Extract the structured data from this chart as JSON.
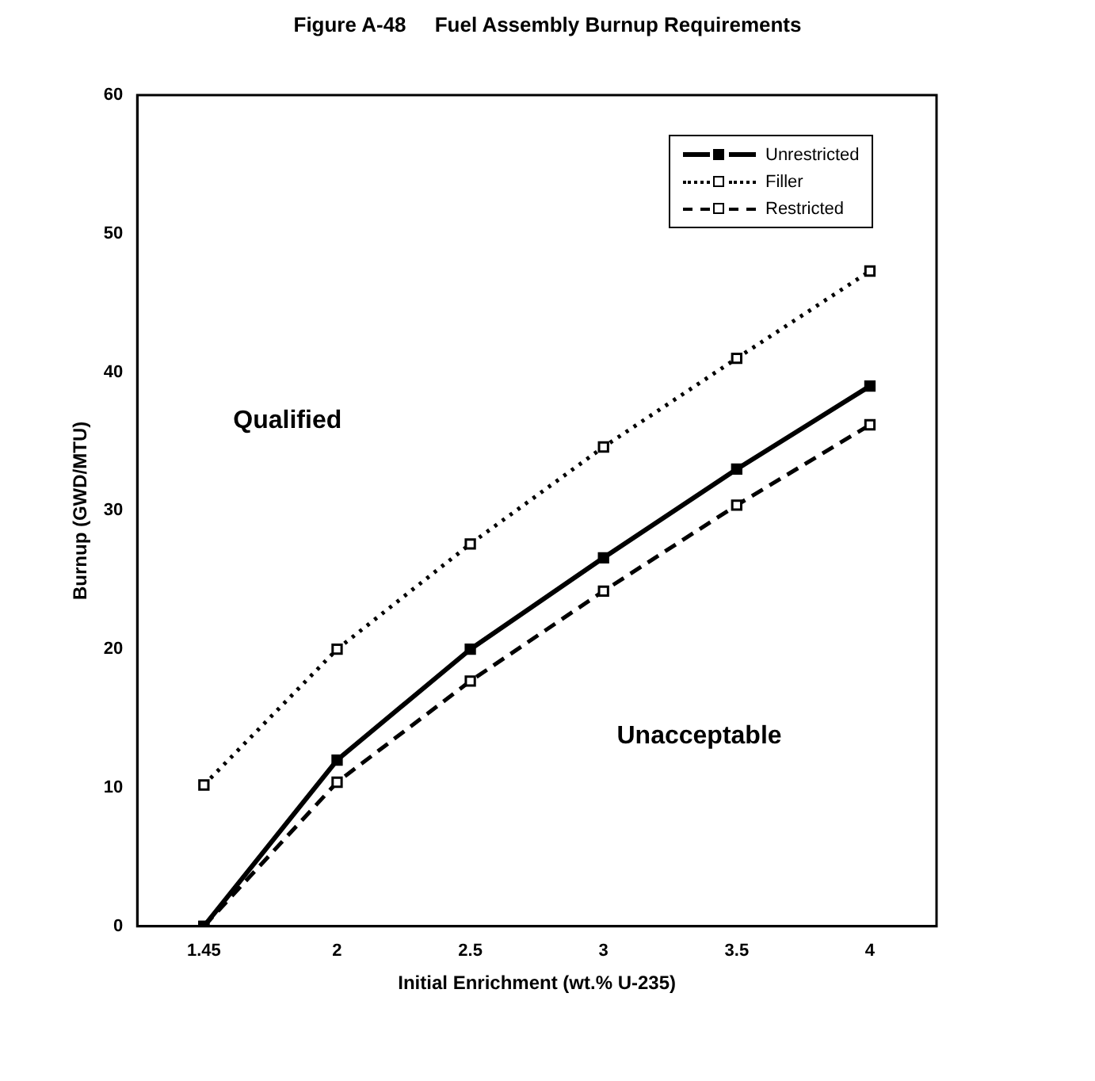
{
  "chart_data": {
    "type": "line",
    "title": "Figure A-48     Fuel Assembly Burnup Requirements",
    "xlabel": "Initial Enrichment (wt.% U-235)",
    "ylabel": "Burnup (GWD/MTU)",
    "categories": [
      "1.45",
      "2",
      "2.5",
      "3",
      "3.5",
      "4"
    ],
    "series": [
      {
        "name": "Unrestricted",
        "color": "#000000",
        "line_style": "solid",
        "values": [
          0,
          12,
          20,
          26.6,
          33,
          39
        ]
      },
      {
        "name": "Filler",
        "color": "#000000",
        "line_style": "dotted",
        "values": [
          10.2,
          20,
          27.6,
          34.6,
          41,
          47.3
        ]
      },
      {
        "name": "Restricted",
        "color": "#000000",
        "line_style": "dashed",
        "values": [
          0,
          10.4,
          17.7,
          24.2,
          30.4,
          36.2
        ]
      }
    ],
    "ylim": [
      0,
      60
    ],
    "yticks": [
      0,
      10,
      20,
      30,
      40,
      50,
      60
    ],
    "grid": false,
    "legend": "top right",
    "marker": "square",
    "annotations": [
      "Qualified",
      "Unacceptable"
    ]
  }
}
